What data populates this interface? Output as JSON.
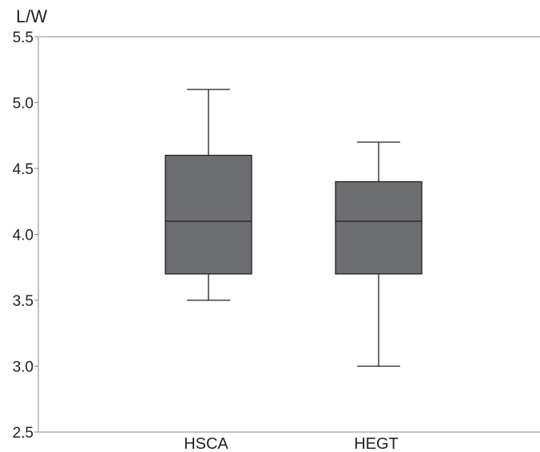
{
  "chart_data": {
    "type": "boxplot",
    "ylabel": "L/W",
    "xlabel": "",
    "ylim": [
      2.5,
      5.5
    ],
    "yticks": [
      "2.5",
      "3.0",
      "3.5",
      "4.0",
      "4.5",
      "5.0",
      "5.5"
    ],
    "ytick_values": [
      2.5,
      3.0,
      3.5,
      4.0,
      4.5,
      5.0,
      5.5
    ],
    "categories": [
      "HSCA",
      "HEGT"
    ],
    "boxes": [
      {
        "category": "HSCA",
        "min": 3.5,
        "q1": 3.7,
        "median": 4.1,
        "q3": 4.6,
        "max": 5.1
      },
      {
        "category": "HEGT",
        "min": 3.0,
        "q1": 3.7,
        "median": 4.1,
        "q3": 4.4,
        "max": 4.7
      }
    ],
    "grid": false,
    "box_color": "#6d6e71",
    "line_color": "#231f20"
  }
}
